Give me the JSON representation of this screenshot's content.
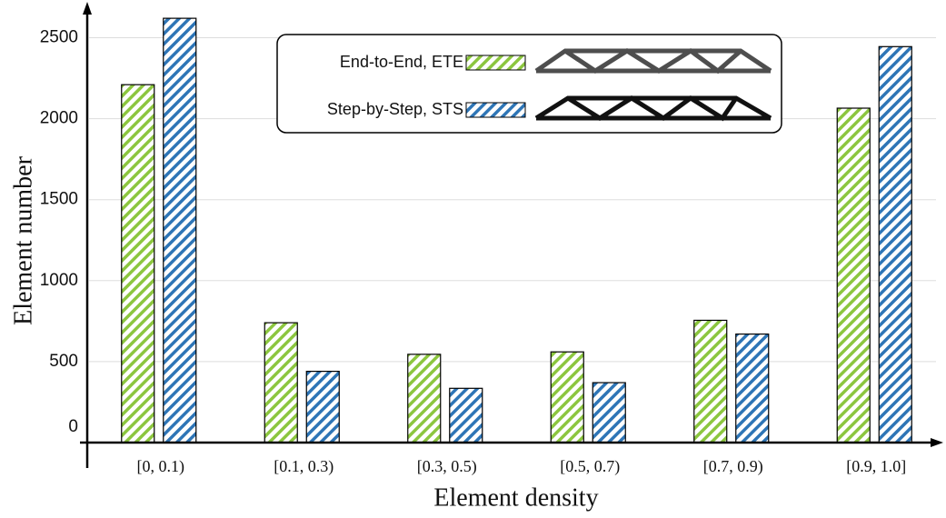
{
  "chart_data": {
    "type": "bar",
    "x_label": "Element density",
    "y_label": "Element number",
    "categories": [
      "[0, 0.1)",
      "[0.1, 0.3)",
      "[0.3, 0.5)",
      "[0.5, 0.7)",
      "[0.7, 0.9)",
      "[0.9, 1.0]"
    ],
    "series": [
      {
        "name": "End-to-End, ETE",
        "color": "#8cc63f",
        "values": [
          2210,
          740,
          545,
          560,
          755,
          2065
        ]
      },
      {
        "name": "Step-by-Step, STS",
        "color": "#2e75b6",
        "values": [
          2620,
          440,
          335,
          370,
          670,
          2445
        ]
      }
    ],
    "ylim": [
      0,
      2750
    ],
    "yticks": [
      0,
      500,
      1000,
      1500,
      2000,
      2500
    ],
    "grid": true,
    "hatch": true
  }
}
